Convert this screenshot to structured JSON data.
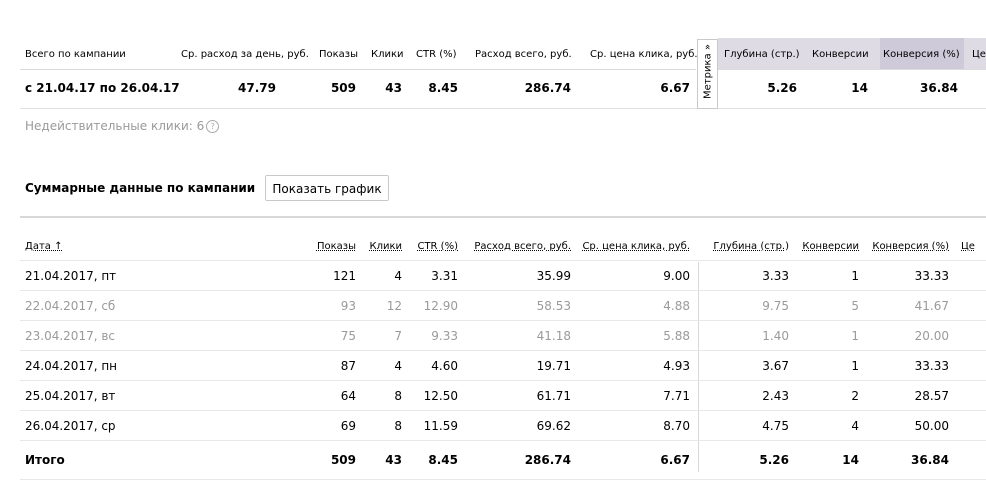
{
  "summary": {
    "headers": [
      "Всего по кампании",
      "Ср. расход за день, руб.",
      "Показы",
      "Клики",
      "CTR (%)",
      "Расход всего, руб.",
      "Ср. цена клика, руб.",
      "Глубина (стр.)",
      "Конверсии",
      "Конверсия (%)",
      "Це"
    ],
    "period": "с 21.04.17 по 26.04.17",
    "values": [
      "47.79",
      "509",
      "43",
      "8.45",
      "286.74",
      "6.67",
      "5.26",
      "14",
      "36.84"
    ]
  },
  "metrika_tab": "Метрика »",
  "invalid_clicks": "Недействительные клики: 6",
  "help_glyph": "?",
  "section_title": "Суммарные данные по кампании",
  "show_chart_button": "Показать график",
  "table": {
    "headers": [
      "Дата ↑",
      "Показы",
      "Клики",
      "CTR (%)",
      "Расход всего, руб.",
      "Ср. цена клика, руб.",
      "Глубина (стр.)",
      "Конверсии",
      "Конверсия (%)",
      "Це"
    ],
    "rows": [
      {
        "date": "21.04.2017, пт",
        "cells": [
          "121",
          "4",
          "3.31",
          "35.99",
          "9.00",
          "3.33",
          "1",
          "33.33"
        ],
        "weekend": false
      },
      {
        "date": "22.04.2017, сб",
        "cells": [
          "93",
          "12",
          "12.90",
          "58.53",
          "4.88",
          "9.75",
          "5",
          "41.67"
        ],
        "weekend": true
      },
      {
        "date": "23.04.2017, вс",
        "cells": [
          "75",
          "7",
          "9.33",
          "41.18",
          "5.88",
          "1.40",
          "1",
          "20.00"
        ],
        "weekend": true
      },
      {
        "date": "24.04.2017, пн",
        "cells": [
          "87",
          "4",
          "4.60",
          "19.71",
          "4.93",
          "3.67",
          "1",
          "33.33"
        ],
        "weekend": false
      },
      {
        "date": "25.04.2017, вт",
        "cells": [
          "64",
          "8",
          "12.50",
          "61.71",
          "7.71",
          "2.43",
          "2",
          "28.57"
        ],
        "weekend": false
      },
      {
        "date": "26.04.2017, ср",
        "cells": [
          "69",
          "8",
          "11.59",
          "69.62",
          "8.70",
          "4.75",
          "4",
          "50.00"
        ],
        "weekend": false
      }
    ],
    "total": {
      "label": "Итого",
      "cells": [
        "509",
        "43",
        "8.45",
        "286.74",
        "6.67",
        "5.26",
        "14",
        "36.84"
      ]
    }
  },
  "colors": {
    "metrika_header_bg": "#dedbe5",
    "weekend_text": "#9a9a9a",
    "border": "#e2e2e2"
  }
}
